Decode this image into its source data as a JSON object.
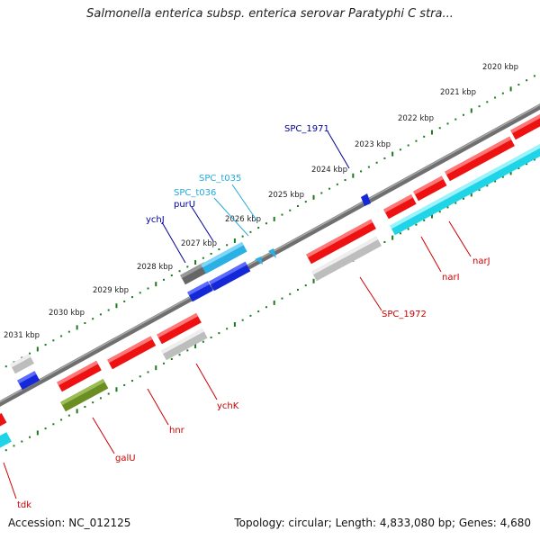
{
  "title": "Salmonella enterica subsp. enterica serovar Paratyphi C stra...",
  "footer": {
    "accession": "Accession: NC_012125",
    "summary": "Topology: circular; Length: 4,833,080 bp; Genes: 4,680"
  },
  "colors": {
    "backbone": "#808080",
    "tick": "#1a7a1a",
    "red": "#ee1111",
    "gray": "#bdbdbd",
    "darkgray": "#666666",
    "cyan": "#1fd4e6",
    "lightblue": "#2bb0e6",
    "blue": "#1428d8",
    "olive": "#6b8e23",
    "label_red": "#cc0000",
    "label_navy": "#000099",
    "label_cyan": "#22aadd"
  },
  "scale_labels": [
    "2020 kbp",
    "2021 kbp",
    "2022 kbp",
    "2023 kbp",
    "2024 kbp",
    "2025 kbp",
    "2026 kbp",
    "2027 kbp",
    "2028 kbp",
    "2029 kbp",
    "2030 kbp",
    "2031 kbp"
  ],
  "gene_labels": {
    "spc_1971": "SPC_1971",
    "spc_t035": "SPC_t035",
    "spc_t036": "SPC_t036",
    "purU": "purU",
    "ychJ": "ychJ",
    "spc_1972": "SPC_1972",
    "narI": "narI",
    "narJ": "narJ",
    "ychK": "ychK",
    "hnr": "hnr",
    "galU": "galU",
    "tdk": "tdk"
  }
}
